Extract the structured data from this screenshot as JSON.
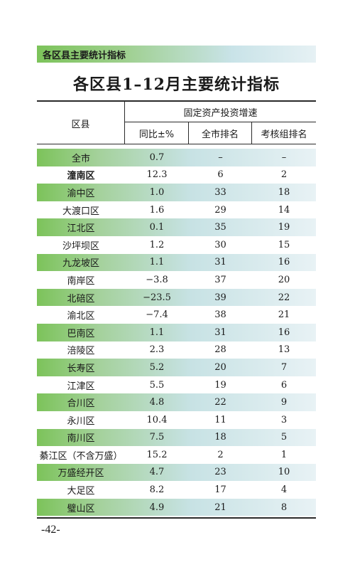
{
  "section_header": "各区县主要统计指标",
  "title": "各区县1–12月主要统计指标",
  "table": {
    "col_district": "区县",
    "col_group": "固定资产投资增速",
    "col_yoy": "同比±%",
    "col_city_rank": "全市排名",
    "col_group_rank": "考核组排名",
    "rows": [
      {
        "district": "全市",
        "yoy": "0.7",
        "city_rank": "–",
        "group_rank": "–",
        "shaded": true,
        "bold": false
      },
      {
        "district": "潼南区",
        "yoy": "12.3",
        "city_rank": "6",
        "group_rank": "2",
        "shaded": false,
        "bold": true
      },
      {
        "district": "渝中区",
        "yoy": "1.0",
        "city_rank": "33",
        "group_rank": "18",
        "shaded": true,
        "bold": false
      },
      {
        "district": "大渡口区",
        "yoy": "1.6",
        "city_rank": "29",
        "group_rank": "14",
        "shaded": false,
        "bold": false
      },
      {
        "district": "江北区",
        "yoy": "0.1",
        "city_rank": "35",
        "group_rank": "19",
        "shaded": true,
        "bold": false
      },
      {
        "district": "沙坪坝区",
        "yoy": "1.2",
        "city_rank": "30",
        "group_rank": "15",
        "shaded": false,
        "bold": false
      },
      {
        "district": "九龙坡区",
        "yoy": "1.1",
        "city_rank": "31",
        "group_rank": "16",
        "shaded": true,
        "bold": false
      },
      {
        "district": "南岸区",
        "yoy": "−3.8",
        "city_rank": "37",
        "group_rank": "20",
        "shaded": false,
        "bold": false
      },
      {
        "district": "北碚区",
        "yoy": "−23.5",
        "city_rank": "39",
        "group_rank": "22",
        "shaded": true,
        "bold": false
      },
      {
        "district": "渝北区",
        "yoy": "−7.4",
        "city_rank": "38",
        "group_rank": "21",
        "shaded": false,
        "bold": false
      },
      {
        "district": "巴南区",
        "yoy": "1.1",
        "city_rank": "31",
        "group_rank": "16",
        "shaded": true,
        "bold": false
      },
      {
        "district": "涪陵区",
        "yoy": "2.3",
        "city_rank": "28",
        "group_rank": "13",
        "shaded": false,
        "bold": false
      },
      {
        "district": "长寿区",
        "yoy": "5.2",
        "city_rank": "20",
        "group_rank": "7",
        "shaded": true,
        "bold": false
      },
      {
        "district": "江津区",
        "yoy": "5.5",
        "city_rank": "19",
        "group_rank": "6",
        "shaded": false,
        "bold": false
      },
      {
        "district": "合川区",
        "yoy": "4.8",
        "city_rank": "22",
        "group_rank": "9",
        "shaded": true,
        "bold": false
      },
      {
        "district": "永川区",
        "yoy": "10.4",
        "city_rank": "11",
        "group_rank": "3",
        "shaded": false,
        "bold": false
      },
      {
        "district": "南川区",
        "yoy": "7.5",
        "city_rank": "18",
        "group_rank": "5",
        "shaded": true,
        "bold": false
      },
      {
        "district": "綦江区（不含万盛）",
        "yoy": "15.2",
        "city_rank": "2",
        "group_rank": "1",
        "shaded": false,
        "bold": false
      },
      {
        "district": "万盛经开区",
        "yoy": "4.7",
        "city_rank": "23",
        "group_rank": "10",
        "shaded": true,
        "bold": false
      },
      {
        "district": "大足区",
        "yoy": "8.2",
        "city_rank": "17",
        "group_rank": "4",
        "shaded": false,
        "bold": false
      },
      {
        "district": "璧山区",
        "yoy": "4.9",
        "city_rank": "21",
        "group_rank": "8",
        "shaded": true,
        "bold": false
      }
    ]
  },
  "page_number": "-42-",
  "colors": {
    "band_green": "#7cc35a",
    "band_light": "#e8f2f5",
    "rule": "#2a2a2a"
  }
}
